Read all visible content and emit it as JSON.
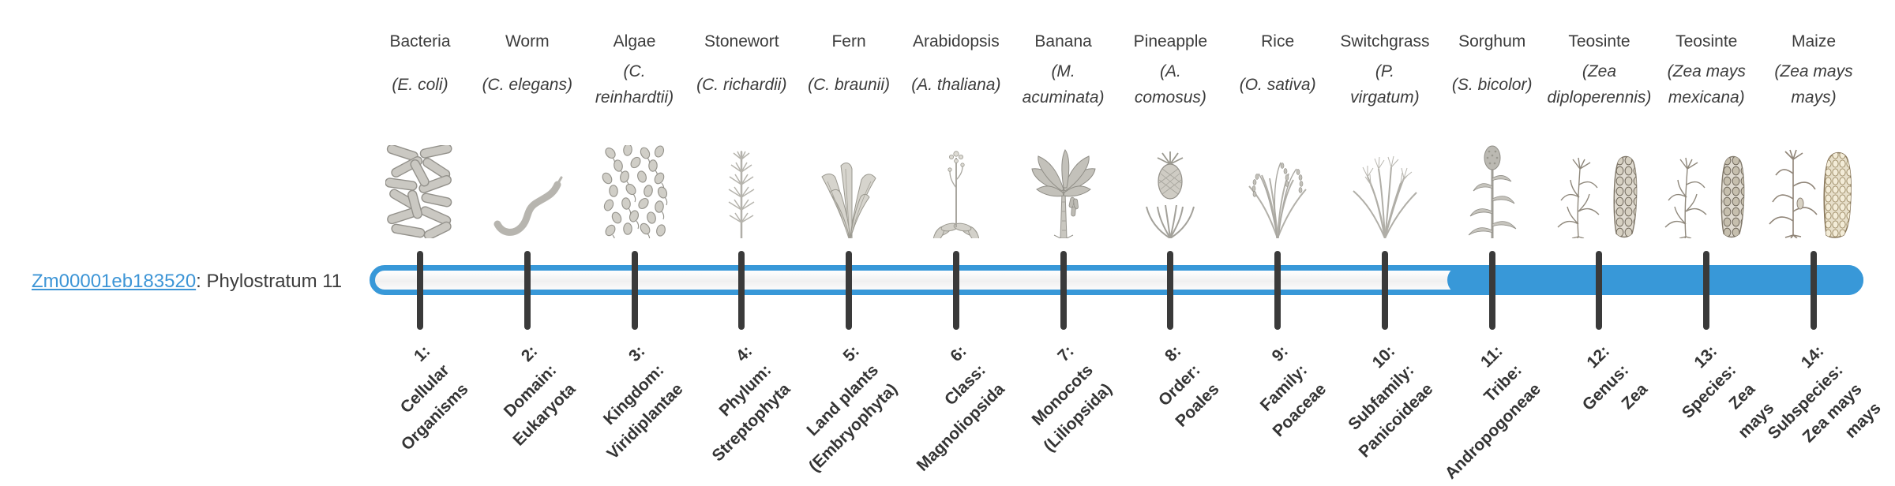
{
  "gene": {
    "id_label": "Zm00001eb183520",
    "annotation": ": Phylostratum 11",
    "phylostratum": 11,
    "total_strata": 14
  },
  "colors": {
    "bar_blue": "#3898d8",
    "track_interior": "#f4f4f4",
    "tick": "#3a3a3a",
    "text_dark": "#3c3c3c",
    "link_blue": "#3d95d6"
  },
  "bar": {
    "filled_from_stratum": 11,
    "filled_to_stratum": 14,
    "description": "pill track with solid fill from phylostratum 11 to 14"
  },
  "taxa": [
    {
      "common": "Bacteria",
      "scientific": "(E. coli)",
      "icon": "bacteria",
      "stratum": "1:\nCellular\nOrganisms"
    },
    {
      "common": "Worm",
      "scientific": "(C. elegans)",
      "icon": "worm",
      "stratum": "2:\nDomain:\nEukaryota"
    },
    {
      "common": "Algae",
      "scientific": "(C.\nreinhardtii)",
      "icon": "algae",
      "stratum": "3:\nKingdom:\nViridiplantae"
    },
    {
      "common": "Stonewort",
      "scientific": "(C. richardii)",
      "icon": "stonewort",
      "stratum": "4:\nPhylum:\nStreptophyta"
    },
    {
      "common": "Fern",
      "scientific": "(C. braunii)",
      "icon": "fern",
      "stratum": "5:\nLand plants\n(Embryophyta)"
    },
    {
      "common": "Arabidopsis",
      "scientific": "(A. thaliana)",
      "icon": "arabidopsis",
      "stratum": "6:\nClass:\nMagnoliopsida"
    },
    {
      "common": "Banana",
      "scientific": "(M.\nacuminata)",
      "icon": "banana",
      "stratum": "7:\nMonocots\n(Liliopsida)"
    },
    {
      "common": "Pineapple",
      "scientific": "(A.\ncomosus)",
      "icon": "pineapple",
      "stratum": "8:\nOrder:\nPoales"
    },
    {
      "common": "Rice",
      "scientific": "(O. sativa)",
      "icon": "rice",
      "stratum": "9:\nFamily:\nPoaceae"
    },
    {
      "common": "Switchgrass",
      "scientific": "(P.\nvirgatum)",
      "icon": "switchgrass",
      "stratum": "10:\nSubfamily:\nPanicoideae"
    },
    {
      "common": "Sorghum",
      "scientific": "(S. bicolor)",
      "icon": "sorghum",
      "stratum": "11:\nTribe:\nAndropogoneae"
    },
    {
      "common": "Teosinte",
      "scientific": "(Zea\ndiploperennis)",
      "icon": "teosinte-diploperennis",
      "stratum": "12:\nGenus:\nZea"
    },
    {
      "common": "Teosinte",
      "scientific": "(Zea mays\nmexicana)",
      "icon": "teosinte-mexicana",
      "stratum": "13:\nSpecies:\nZea\nmays"
    },
    {
      "common": "Maize",
      "scientific": "(Zea mays\nmays)",
      "icon": "maize",
      "stratum": "14:\nSubspecies:\nZea mays\nmays"
    }
  ]
}
